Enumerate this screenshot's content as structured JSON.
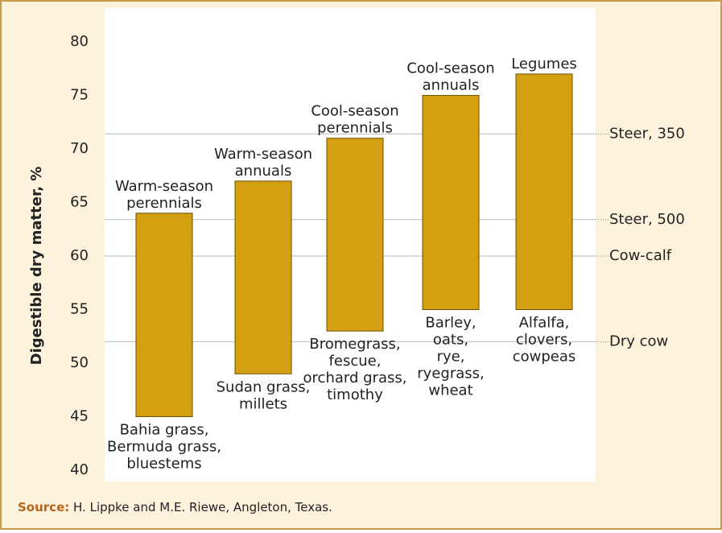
{
  "chart_data": {
    "type": "range-bar",
    "ylabel": "Digestible dry matter, %",
    "ylim": [
      40,
      80
    ],
    "yticks": [
      40,
      45,
      50,
      55,
      60,
      65,
      70,
      75,
      80
    ],
    "color": "#d4a012",
    "top_labels": [
      [
        "Warm-season",
        "perennials"
      ],
      [
        "Warm-season",
        "annuals"
      ],
      [
        "Cool-season",
        "perennials"
      ],
      [
        "Cool-season",
        "annuals"
      ],
      [
        "Legumes"
      ]
    ],
    "bottom_labels": [
      [
        "Bahia grass,",
        "Bermuda grass,",
        "bluestems"
      ],
      [
        "Sudan grass,",
        "millets"
      ],
      [
        "Bromegrass,",
        "fescue,",
        "orchard grass,",
        "timothy"
      ],
      [
        "Barley,",
        "oats,",
        "rye,",
        "ryegrass,",
        "wheat"
      ],
      [
        "Alfalfa,",
        "clovers,",
        "cowpeas"
      ]
    ],
    "low": [
      45,
      49,
      53,
      55,
      55
    ],
    "high": [
      64,
      67,
      71,
      75,
      77
    ],
    "reference_lines": [
      {
        "label": "Steer, 350",
        "value": 71.4
      },
      {
        "label": "Steer, 500",
        "value": 63.4
      },
      {
        "label": "Cow-calf",
        "value": 60
      },
      {
        "label": "Dry cow",
        "value": 52
      }
    ],
    "source": {
      "label": "Source:",
      "text": "H. Lippke and M.E. Riewe, Angleton, Texas."
    }
  }
}
